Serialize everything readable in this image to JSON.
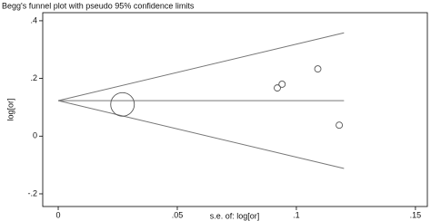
{
  "chart_data": {
    "type": "scatter",
    "title": "Begg's funnel plot with pseudo 95% confidence limits",
    "x_label": "s.e. of: log[or]",
    "y_label": "log[or]",
    "x": [
      0.027,
      0.092,
      0.094,
      0.109,
      0.118
    ],
    "values": [
      0.11,
      0.167,
      0.18,
      0.233,
      0.038
    ],
    "marker_sizes": [
      13,
      3.5,
      3.5,
      3.5,
      3.5
    ],
    "color": "#555555",
    "lines": [
      {
        "x": [
          0,
          0.12
        ],
        "values": [
          0.123,
          0.123
        ]
      },
      {
        "x": [
          0,
          0.12
        ],
        "values": [
          0.123,
          0.358
        ]
      },
      {
        "x": [
          0,
          0.12
        ],
        "values": [
          0.123,
          -0.112
        ]
      }
    ],
    "line_color": "#777777",
    "xlim": [
      -0.0065,
      0.155
    ],
    "ylim": [
      -0.244,
      0.428
    ],
    "xticks": [
      0,
      {
        "value": 0.05,
        "label": ".05"
      },
      {
        "value": 0.1,
        "label": ".1"
      },
      {
        "value": 0.15,
        "label": ".15"
      }
    ],
    "yticks": [
      {
        "value": -0.2,
        "label": "-.2"
      },
      0,
      {
        "value": 0.2,
        "label": ".2"
      },
      {
        "value": 0.4,
        "label": ".4"
      }
    ]
  }
}
